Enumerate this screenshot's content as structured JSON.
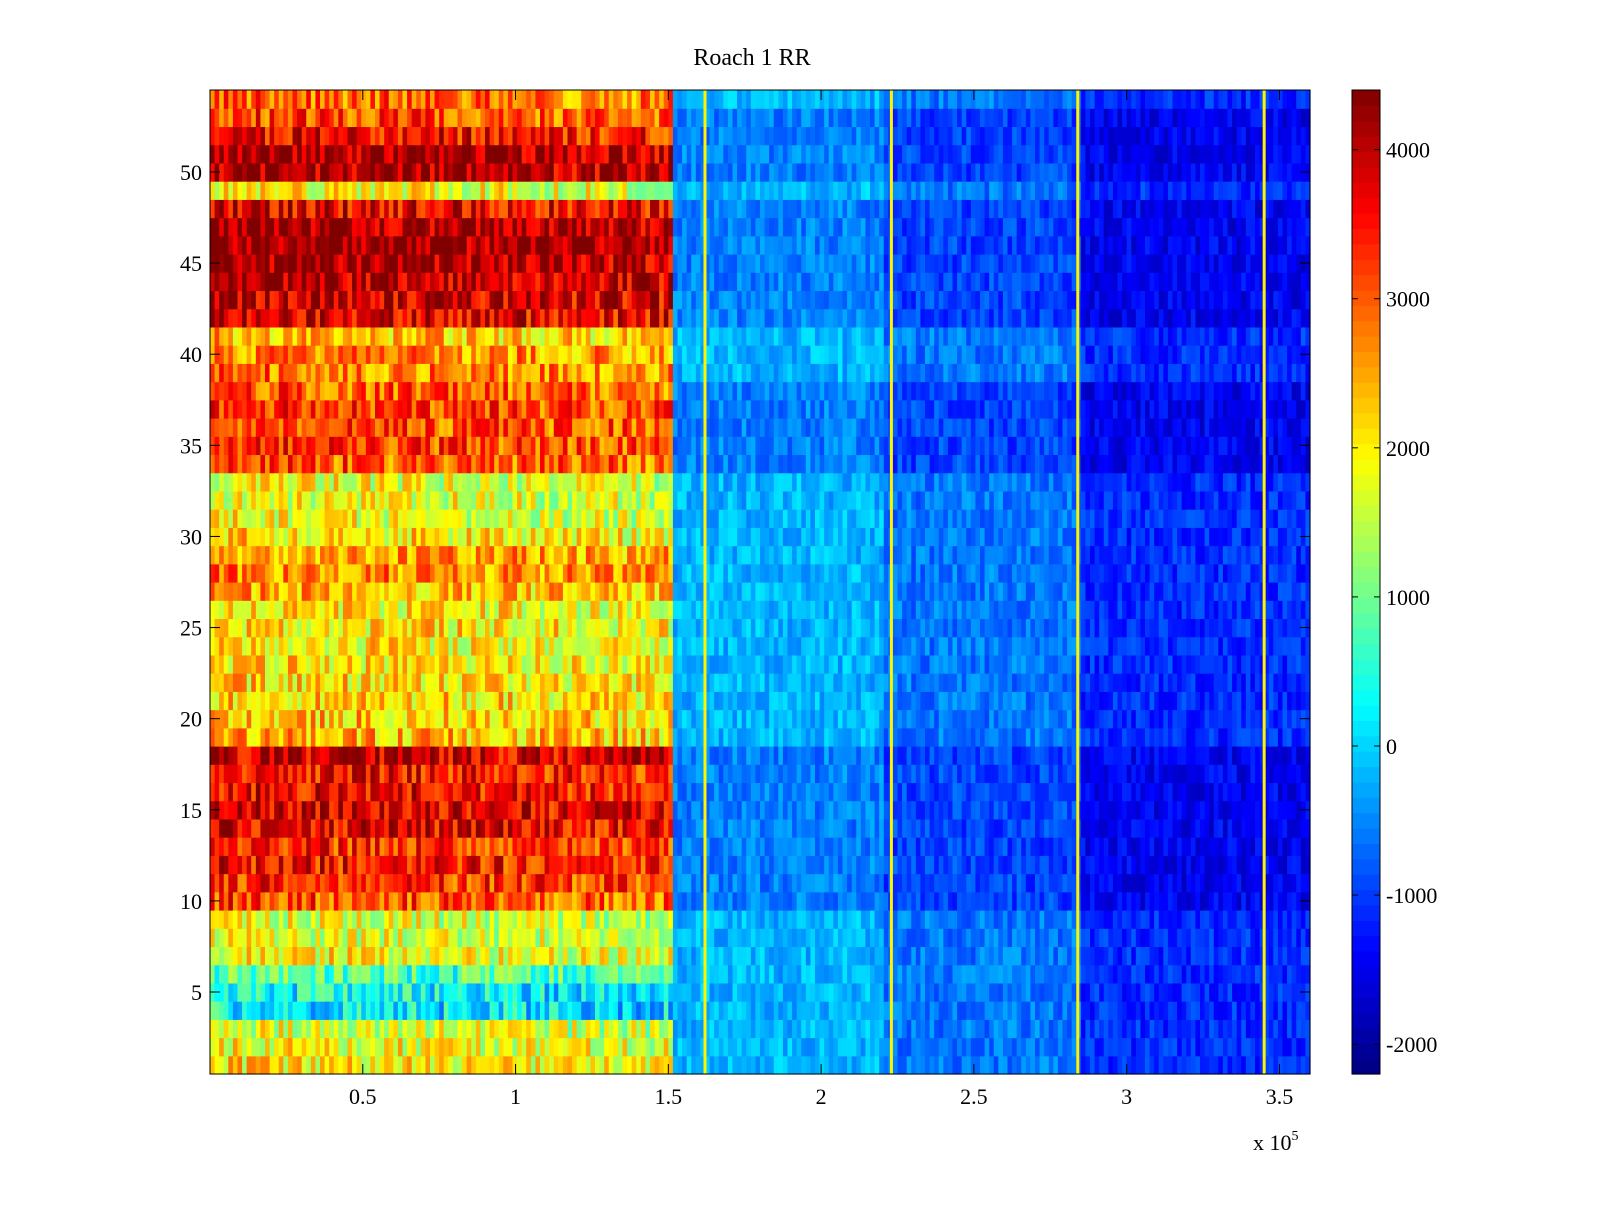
{
  "chart_data": {
    "type": "heatmap",
    "title": "Roach 1 RR",
    "xlabel": "",
    "ylabel": "",
    "x_exponent_label": "x 10",
    "x_exponent_power": "5",
    "x_multiplier": 100000,
    "xlim": [
      0,
      3.6
    ],
    "ylim": [
      0.5,
      54.5
    ],
    "x_ticks": [
      0.5,
      1,
      1.5,
      2,
      2.5,
      3,
      3.5
    ],
    "x_tick_labels": [
      "0.5",
      "1",
      "1.5",
      "2",
      "2.5",
      "3",
      "3.5"
    ],
    "y_ticks": [
      5,
      10,
      15,
      20,
      25,
      30,
      35,
      40,
      45,
      50
    ],
    "y_tick_labels": [
      "5",
      "10",
      "15",
      "20",
      "25",
      "30",
      "35",
      "40",
      "45",
      "50"
    ],
    "rows": 54,
    "colormap": "jet",
    "clim": [
      -2200,
      4400
    ],
    "colorbar": {
      "ticks": [
        -2000,
        -1000,
        0,
        1000,
        2000,
        3000,
        4000
      ],
      "tick_labels": [
        "-2000",
        "-1000",
        "0",
        "1000",
        "2000",
        "3000",
        "4000"
      ]
    },
    "regions": [
      {
        "x_start": 0,
        "x_end": 1.52,
        "approx_level_low": 1500,
        "approx_level_high": 4400,
        "description_level": "high"
      },
      {
        "x_start": 1.52,
        "x_end": 2.2,
        "approx_level": -200
      },
      {
        "x_start": 2.2,
        "x_end": 2.85,
        "approx_level": -600
      },
      {
        "x_start": 2.85,
        "x_end": 3.6,
        "approx_level": -1100
      }
    ],
    "row_profile_high_region": [
      2100,
      2000,
      1800,
      300,
      400,
      900,
      2000,
      1800,
      1800,
      3200,
      3400,
      3600,
      3400,
      3800,
      3900,
      3700,
      3600,
      3900,
      2500,
      2400,
      2300,
      2200,
      2200,
      2100,
      2200,
      2100,
      2500,
      2800,
      2700,
      2200,
      1900,
      1900,
      1900,
      3100,
      3300,
      3200,
      3300,
      3100,
      2900,
      2800,
      2400,
      3900,
      4000,
      4200,
      4300,
      4400,
      4300,
      3800,
      2000,
      4200,
      4300,
      3700,
      3200,
      3000
    ],
    "vertical_lines": [
      {
        "x": 1.62,
        "value": 2000
      },
      {
        "x": 2.23,
        "value": 2000
      },
      {
        "x": 2.84,
        "value": 2000
      },
      {
        "x": 3.45,
        "value": 2000
      }
    ]
  }
}
